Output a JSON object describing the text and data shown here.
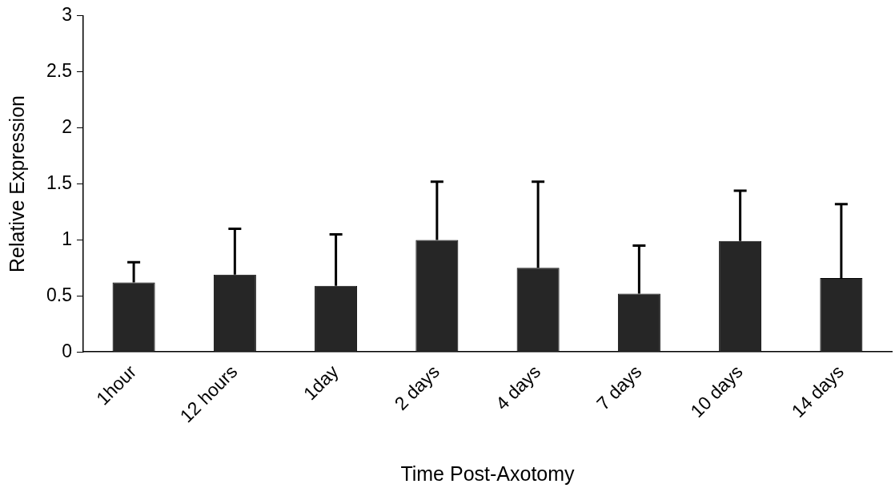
{
  "chart_data": {
    "type": "bar",
    "xlabel": "Time Post-Axotomy",
    "ylabel": "Relative Expression",
    "categories": [
      "1hour",
      "12 hours",
      "1day",
      "2 days",
      "4 days",
      "7 days",
      "10 days",
      "14 days"
    ],
    "values": [
      0.62,
      0.69,
      0.59,
      1.0,
      0.75,
      0.52,
      0.99,
      0.66
    ],
    "errors": [
      [
        0.62,
        0.8
      ],
      [
        0.69,
        1.1
      ],
      [
        0.59,
        1.05
      ],
      [
        1.0,
        1.52
      ],
      [
        0.75,
        1.52
      ],
      [
        0.52,
        0.95
      ],
      [
        0.99,
        1.44
      ],
      [
        0.66,
        1.32
      ]
    ],
    "color": "#262626",
    "ylim": [
      0,
      3
    ],
    "yticks": [
      0,
      0.5,
      1,
      1.5,
      2,
      2.5,
      3
    ],
    "grid": false,
    "legend": false
  }
}
